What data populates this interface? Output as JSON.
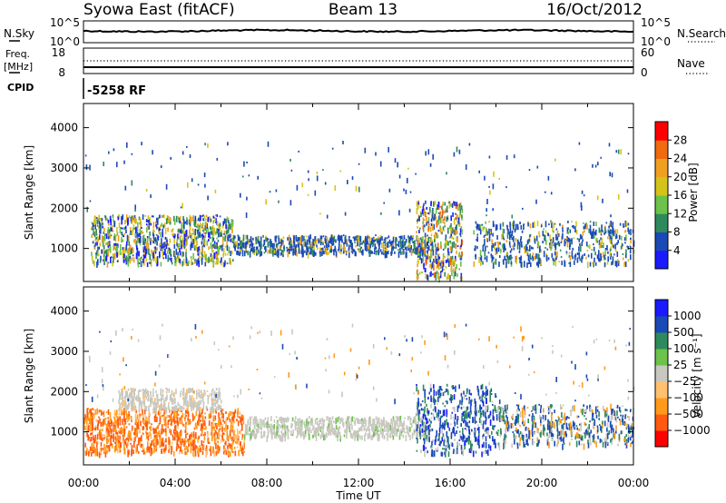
{
  "header": {
    "station": "Syowa East (fitACF)",
    "beam": "Beam 13",
    "date": "16/Oct/2012"
  },
  "noise_panel": {
    "left_label": "N.Sky",
    "right_label": "N.Search",
    "left_ticks": [
      "10^5",
      "10^0"
    ],
    "right_ticks": [
      "10^5",
      "10^0"
    ]
  },
  "freq_panel": {
    "left_label_1": "Freq.",
    "left_label_2": "[MHz]",
    "right_label": "Nave",
    "left_ticks": [
      "18",
      "8"
    ],
    "right_ticks": [
      "60",
      "0"
    ]
  },
  "cpid": {
    "label": "CPID",
    "value": "-5258 RF"
  },
  "x_axis": {
    "label": "Time UT",
    "ticks": [
      "00:00",
      "04:00",
      "08:00",
      "12:00",
      "16:00",
      "20:00",
      "00:00"
    ]
  },
  "colors": {
    "power_scale": [
      "#1a1aff",
      "#1a4ab5",
      "#2e8a5c",
      "#6cc24a",
      "#d4c41a",
      "#f0a020",
      "#f06a10",
      "#ff0000"
    ],
    "velocity_scale": [
      "#ff0000",
      "#ff5a10",
      "#ff9a1a",
      "#ffc070",
      "#c8c8c0",
      "#6cc24a",
      "#2e8a5c",
      "#1a4ab5",
      "#1a1aff"
    ]
  },
  "chart_data": [
    {
      "type": "heatmap",
      "panel": "power",
      "ylabel": "Slant Range [km]",
      "xlabel": "Time UT",
      "xlim": [
        0,
        24
      ],
      "ylim": [
        180,
        4600
      ],
      "yticks": [
        1000,
        2000,
        3000,
        4000
      ],
      "colorbar": {
        "label": "Power [dB]",
        "range": [
          0,
          32
        ],
        "ticks": [
          "4",
          "8",
          "12",
          "16",
          "20",
          "24",
          "28"
        ]
      },
      "echo_regions": [
        {
          "t": [
            0.3,
            6.5
          ],
          "r": [
            650,
            1850
          ],
          "level": "mixed 4-24 dB"
        },
        {
          "t": [
            6.5,
            15.0
          ],
          "r": [
            900,
            1350
          ],
          "level": "4-20 dB"
        },
        {
          "t": [
            14.5,
            16.5
          ],
          "r": [
            300,
            2200
          ],
          "level": "4-24 dB"
        },
        {
          "t": [
            17.0,
            24.0
          ],
          "r": [
            650,
            1700
          ],
          "level": "4-20 dB"
        }
      ]
    },
    {
      "type": "heatmap",
      "panel": "velocity",
      "ylabel": "Slant Range [km]",
      "xlabel": "Time UT",
      "xlim": [
        0,
        24
      ],
      "ylim": [
        180,
        4600
      ],
      "yticks": [
        1000,
        2000,
        3000,
        4000
      ],
      "colorbar": {
        "label": "Velocity [m s⁻¹]",
        "ticks": [
          "1000",
          "500",
          "100",
          "25",
          "−25",
          "−100",
          "−500",
          "−1000"
        ]
      },
      "echo_regions": [
        {
          "t": [
            0.0,
            7.0
          ],
          "r": [
            500,
            1600
          ],
          "level": "-100 to -500 m/s"
        },
        {
          "t": [
            1.5,
            6.0
          ],
          "r": [
            1600,
            2100
          ],
          "level": "-25 to 25 m/s"
        },
        {
          "t": [
            7.0,
            15.0
          ],
          "r": [
            900,
            1400
          ],
          "level": "-25 to 25 m/s"
        },
        {
          "t": [
            14.5,
            18.0
          ],
          "r": [
            500,
            2200
          ],
          "level": "100 to 1000 m/s"
        },
        {
          "t": [
            18.0,
            24.0
          ],
          "r": [
            700,
            1700
          ],
          "level": "mixed"
        }
      ]
    }
  ]
}
